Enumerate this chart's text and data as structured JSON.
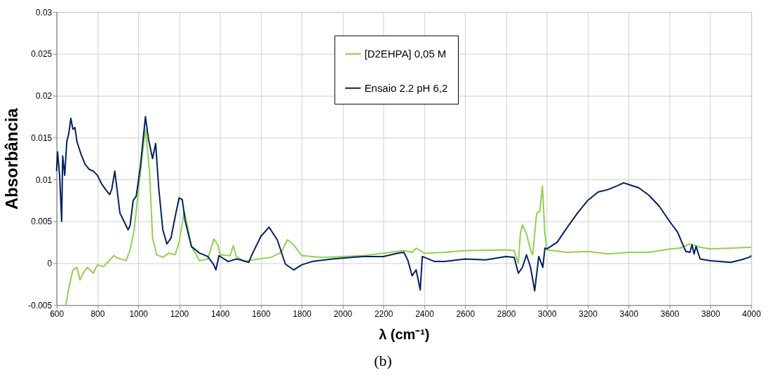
{
  "chart_data": {
    "type": "line",
    "xlabel": "λ (cm⁻¹)",
    "ylabel": "Absorbância",
    "xlim": [
      600,
      4000
    ],
    "xticks": [
      600,
      800,
      1000,
      1200,
      1400,
      1600,
      1800,
      2000,
      2200,
      2400,
      2600,
      2800,
      3000,
      3200,
      3400,
      3600,
      3800,
      4000
    ],
    "ylim": [
      -0.005,
      0.03
    ],
    "yticks": [
      -0.005,
      0,
      0.005,
      0.01,
      0.015,
      0.02,
      0.025,
      0.03
    ],
    "grid": true,
    "legend": "top",
    "marker": "none",
    "line_style": "solid",
    "annotations": [
      "(b)"
    ],
    "series": [
      {
        "name": "[D2EHPA] 0,05 M",
        "color": "#92d050",
        "x": [
          645,
          660,
          680,
          700,
          715,
          730,
          750,
          780,
          800,
          830,
          850,
          880,
          900,
          940,
          960,
          980,
          1000,
          1020,
          1035,
          1055,
          1070,
          1090,
          1120,
          1150,
          1180,
          1200,
          1225,
          1240,
          1260,
          1300,
          1340,
          1370,
          1390,
          1400,
          1450,
          1465,
          1480,
          1520,
          1560,
          1650,
          1700,
          1730,
          1760,
          1800,
          1900,
          2000,
          2100,
          2200,
          2300,
          2340,
          2360,
          2400,
          2500,
          2600,
          2800,
          2840,
          2860,
          2870,
          2880,
          2900,
          2920,
          2930,
          2950,
          2965,
          2978,
          2990,
          3000,
          3100,
          3200,
          3300,
          3400,
          3500,
          3600,
          3650,
          3700,
          3750,
          3800,
          3900,
          4000
        ],
        "values": [
          -0.005,
          -0.003,
          -0.0008,
          -0.0005,
          -0.002,
          -0.0012,
          -0.0005,
          -0.0012,
          -0.0002,
          -0.0004,
          0.0001,
          0.0009,
          0.0006,
          0.0003,
          0.0016,
          0.004,
          0.0085,
          0.013,
          0.016,
          0.011,
          0.003,
          0.001,
          0.0007,
          0.0012,
          0.001,
          0.0025,
          0.0062,
          0.0045,
          0.002,
          0.0003,
          0.0005,
          0.0029,
          0.0022,
          0.001,
          0.0009,
          0.0021,
          0.0008,
          0.0002,
          0.0004,
          0.0007,
          0.0013,
          0.0028,
          0.0022,
          0.0009,
          0.0007,
          0.0008,
          0.0009,
          0.0012,
          0.0015,
          0.0013,
          0.0018,
          0.0012,
          0.0013,
          0.0015,
          0.0016,
          0.0015,
          0.0,
          0.0035,
          0.0046,
          0.0035,
          0.0016,
          0.001,
          0.006,
          0.0062,
          0.0092,
          0.0035,
          0.0016,
          0.0013,
          0.0014,
          0.0011,
          0.0013,
          0.0013,
          0.0017,
          0.0018,
          0.0023,
          0.0019,
          0.0017,
          0.0018,
          0.0019
        ]
      },
      {
        "name": "Ensaio 2.2 pH 6,2",
        "color": "#002060",
        "x": [
          600,
          605,
          615,
          625,
          630,
          640,
          650,
          660,
          670,
          680,
          690,
          700,
          720,
          740,
          760,
          780,
          800,
          820,
          840,
          860,
          870,
          885,
          895,
          910,
          930,
          950,
          960,
          975,
          990,
          1010,
          1035,
          1050,
          1070,
          1085,
          1100,
          1120,
          1140,
          1160,
          1180,
          1200,
          1215,
          1230,
          1260,
          1300,
          1340,
          1370,
          1380,
          1395,
          1440,
          1480,
          1500,
          1540,
          1560,
          1600,
          1640,
          1680,
          1720,
          1760,
          1800,
          1850,
          1950,
          2000,
          2100,
          2200,
          2270,
          2300,
          2320,
          2340,
          2360,
          2380,
          2390,
          2450,
          2500,
          2600,
          2700,
          2800,
          2840,
          2860,
          2880,
          2900,
          2920,
          2940,
          2960,
          2980,
          2990,
          3000,
          3050,
          3100,
          3150,
          3200,
          3250,
          3300,
          3350,
          3375,
          3400,
          3450,
          3500,
          3550,
          3600,
          3640,
          3660,
          3680,
          3700,
          3710,
          3720,
          3730,
          3750,
          3800,
          3900,
          3950,
          3990,
          4000
        ],
        "values": [
          0.011,
          0.0133,
          0.0105,
          0.005,
          0.0128,
          0.0105,
          0.0145,
          0.0155,
          0.0173,
          0.016,
          0.0162,
          0.0145,
          0.013,
          0.0118,
          0.0112,
          0.011,
          0.0105,
          0.0095,
          0.0088,
          0.0082,
          0.0088,
          0.011,
          0.009,
          0.006,
          0.005,
          0.004,
          0.0045,
          0.0075,
          0.008,
          0.0115,
          0.0175,
          0.0148,
          0.0125,
          0.0143,
          0.009,
          0.004,
          0.0023,
          0.003,
          0.0055,
          0.0078,
          0.0076,
          0.005,
          0.002,
          0.0012,
          0.0008,
          -0.0002,
          -0.0008,
          0.0009,
          0.0002,
          0.0005,
          0.0004,
          0.0001,
          0.0012,
          0.0032,
          0.0043,
          0.0028,
          -0.0001,
          -0.0008,
          -0.0002,
          0.0002,
          0.0005,
          0.0006,
          0.0008,
          0.0008,
          0.0012,
          0.0013,
          0.0003,
          -0.0015,
          -0.0008,
          -0.0032,
          0.0008,
          0.0002,
          0.0002,
          0.0005,
          0.0004,
          0.0008,
          0.0007,
          -0.0012,
          -0.0005,
          0.001,
          -0.0005,
          -0.0033,
          0.0008,
          -0.0005,
          0.0018,
          0.0017,
          0.0025,
          0.0043,
          0.006,
          0.0075,
          0.0085,
          0.0088,
          0.0093,
          0.0096,
          0.0094,
          0.009,
          0.0081,
          0.0068,
          0.005,
          0.0037,
          0.0025,
          0.0014,
          0.0013,
          0.0022,
          0.0011,
          0.002,
          0.0005,
          0.0003,
          0.0001,
          0.0004,
          0.0007,
          0.0009
        ]
      }
    ]
  }
}
